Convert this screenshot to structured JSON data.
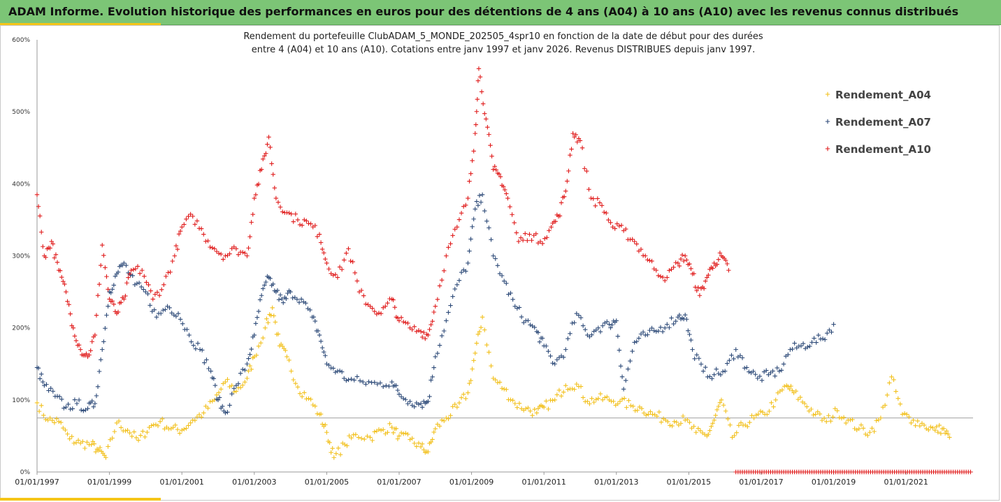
{
  "header": {
    "title": "ADAM Informe. Evolution historique des performances en euros pour des détentions de 4 ans (A04) à 10 ans (A10) avec les revenus connus distribués"
  },
  "colors": {
    "header_bg": "#7cc576",
    "accent": "#f5c518",
    "A04": "#f2c01c",
    "A07": "#2d4a78",
    "A10": "#e01b1b"
  },
  "chart_data": {
    "type": "scatter",
    "title_lines": [
      "Rendement du portefeuille ClubADAM_5_MONDE_202505_4spr10  en fonction de la date de début pour des durées",
      "entre 4 (A04) et 10 ans (A10). Cotations entre janv 1997 et janv 2026. Revenus DISTRIBUES depuis janv 1997."
    ],
    "x_axis": {
      "type": "date",
      "range": [
        "1997-01-01",
        "2022-08-01"
      ],
      "tick_labels": [
        "01/01/1997",
        "01/01/1999",
        "01/01/2001",
        "01/01/2003",
        "01/01/2005",
        "01/01/2007",
        "01/01/2009",
        "01/01/2011",
        "01/01/2013",
        "01/01/2015",
        "01/01/2017",
        "01/01/2019",
        "01/01/2021"
      ],
      "tick_values": [
        1997,
        1999,
        2001,
        2003,
        2005,
        2007,
        2009,
        2011,
        2013,
        2015,
        2017,
        2019,
        2021
      ]
    },
    "y_axis": {
      "range": [
        0,
        600
      ],
      "unit": "%",
      "tick_labels": [
        "0%",
        "100%",
        "200%",
        "300%",
        "400%",
        "500%",
        "600%"
      ],
      "tick_values": [
        0,
        100,
        200,
        300,
        400,
        500,
        600
      ]
    },
    "reference_line": 75,
    "legend_position": "right",
    "grid": false,
    "series": [
      {
        "name": "Rendement_A04",
        "color": "#f2c01c",
        "x": [
          1997.0,
          1997.3,
          1997.6,
          1997.9,
          1998.2,
          1998.5,
          1998.7,
          1998.9,
          1999.2,
          1999.5,
          1999.8,
          2000.1,
          2000.4,
          2000.7,
          2001.0,
          2001.3,
          2001.6,
          2001.9,
          2002.2,
          2002.5,
          2002.8,
          2003.0,
          2003.3,
          2003.5,
          2003.7,
          2003.9,
          2004.2,
          2004.5,
          2004.8,
          2005.0,
          2005.2,
          2005.5,
          2005.8,
          2006.2,
          2006.5,
          2006.8,
          2007.0,
          2007.3,
          2007.6,
          2007.8,
          2008.0,
          2008.3,
          2008.6,
          2008.9,
          2009.1,
          2009.3,
          2009.6,
          2009.9,
          2010.2,
          2010.5,
          2010.8,
          2011.0,
          2011.3,
          2011.6,
          2011.9,
          2012.2,
          2012.5,
          2012.8,
          2013.1,
          2013.4,
          2013.7,
          2014.0,
          2014.3,
          2014.6,
          2014.9,
          2015.2,
          2015.5,
          2015.7,
          2015.9,
          2016.2,
          2016.5,
          2016.8,
          2017.1,
          2017.4,
          2017.7,
          2017.9,
          2018.2,
          2018.5,
          2018.8,
          2019.1,
          2019.4,
          2019.7,
          2020.0,
          2020.3,
          2020.6,
          2020.9,
          2021.2,
          2021.5,
          2021.8,
          2022.0,
          2022.2
        ],
        "values": [
          96,
          72,
          70,
          46,
          40,
          38,
          30,
          20,
          68,
          58,
          44,
          62,
          70,
          60,
          58,
          72,
          82,
          100,
          125,
          112,
          130,
          160,
          200,
          228,
          175,
          160,
          118,
          102,
          80,
          55,
          20,
          38,
          52,
          48,
          58,
          62,
          50,
          45,
          35,
          28,
          60,
          75,
          90,
          110,
          165,
          215,
          130,
          115,
          95,
          88,
          82,
          90,
          100,
          120,
          122,
          98,
          102,
          100,
          98,
          92,
          88,
          80,
          74,
          70,
          72,
          55,
          50,
          72,
          100,
          48,
          65,
          75,
          80,
          100,
          120,
          110,
          95,
          80,
          70,
          85,
          72,
          60,
          55,
          75,
          132,
          80,
          72,
          65,
          58,
          60,
          48
        ]
      },
      {
        "name": "Rendement_A07",
        "color": "#2d4a78",
        "x": [
          1997.0,
          1997.2,
          1997.5,
          1997.8,
          1998.1,
          1998.4,
          1998.6,
          1998.8,
          1999.0,
          1999.2,
          1999.4,
          1999.7,
          2000.0,
          2000.3,
          2000.6,
          2000.9,
          2001.2,
          2001.5,
          2001.8,
          2002.0,
          2002.2,
          2002.5,
          2002.8,
          2003.0,
          2003.2,
          2003.4,
          2003.6,
          2003.8,
          2004.0,
          2004.3,
          2004.6,
          2004.8,
          2005.0,
          2005.3,
          2005.6,
          2006.0,
          2006.4,
          2006.8,
          2007.0,
          2007.3,
          2007.6,
          2007.8,
          2008.0,
          2008.3,
          2008.6,
          2008.9,
          2009.1,
          2009.3,
          2009.6,
          2009.9,
          2010.2,
          2010.5,
          2010.8,
          2011.0,
          2011.3,
          2011.6,
          2011.9,
          2012.2,
          2012.5,
          2012.8,
          2013.0,
          2013.2,
          2013.5,
          2013.8,
          2014.1,
          2014.4,
          2014.7,
          2014.9,
          2015.1,
          2015.4,
          2015.7,
          2016.0,
          2016.3,
          2016.6,
          2016.9,
          2017.2,
          2017.5,
          2017.8,
          2018.1,
          2018.4,
          2018.7,
          2019.0
        ],
        "values": [
          145,
          120,
          105,
          90,
          95,
          88,
          95,
          170,
          250,
          275,
          290,
          260,
          250,
          215,
          230,
          220,
          190,
          170,
          140,
          100,
          82,
          120,
          150,
          190,
          245,
          270,
          250,
          235,
          250,
          240,
          215,
          190,
          150,
          140,
          128,
          125,
          122,
          125,
          108,
          98,
          95,
          98,
          160,
          210,
          260,
          290,
          365,
          385,
          300,
          265,
          230,
          210,
          195,
          175,
          150,
          170,
          220,
          190,
          200,
          205,
          210,
          115,
          180,
          190,
          195,
          205,
          215,
          218,
          170,
          140,
          135,
          140,
          170,
          145,
          130,
          135,
          140,
          170,
          175,
          180,
          185,
          205
        ]
      },
      {
        "name": "Rendement_A10",
        "color": "#e01b1b",
        "x": [
          1997.0,
          1997.2,
          1997.4,
          1997.6,
          1997.8,
          1998.0,
          1998.2,
          1998.4,
          1998.6,
          1998.8,
          1999.0,
          1999.2,
          1999.4,
          1999.6,
          1999.9,
          2000.2,
          2000.5,
          2000.8,
          2001.0,
          2001.3,
          2001.6,
          2001.9,
          2002.2,
          2002.5,
          2002.8,
          2003.0,
          2003.2,
          2003.4,
          2003.6,
          2003.9,
          2004.2,
          2004.5,
          2004.8,
          2005.0,
          2005.3,
          2005.6,
          2005.9,
          2006.2,
          2006.5,
          2006.8,
          2007.0,
          2007.3,
          2007.6,
          2007.8,
          2008.0,
          2008.3,
          2008.6,
          2008.9,
          2009.1,
          2009.2,
          2009.4,
          2009.6,
          2009.8,
          2010.0,
          2010.3,
          2010.6,
          2010.9,
          2011.2,
          2011.4,
          2011.6,
          2011.8,
          2012.0,
          2012.3,
          2012.6,
          2012.9,
          2013.2,
          2013.5,
          2013.8,
          2014.1,
          2014.4,
          2014.7,
          2014.9,
          2015.1,
          2015.3,
          2015.5,
          2015.7,
          2015.9,
          2016.1
        ],
        "values": [
          385,
          300,
          320,
          280,
          250,
          200,
          170,
          160,
          190,
          315,
          240,
          220,
          240,
          280,
          280,
          240,
          260,
          300,
          340,
          355,
          330,
          310,
          300,
          310,
          300,
          380,
          420,
          465,
          380,
          360,
          350,
          345,
          330,
          290,
          270,
          310,
          250,
          230,
          220,
          240,
          210,
          200,
          195,
          190,
          230,
          300,
          340,
          380,
          470,
          560,
          490,
          420,
          410,
          380,
          320,
          330,
          320,
          340,
          355,
          390,
          470,
          460,
          380,
          370,
          340,
          335,
          320,
          300,
          280,
          270,
          290,
          300,
          275,
          245,
          270,
          290,
          300,
          280
        ]
      }
    ],
    "a10_zero_band": {
      "x": [
        2016.3,
        2022.8
      ],
      "value": 0
    }
  }
}
